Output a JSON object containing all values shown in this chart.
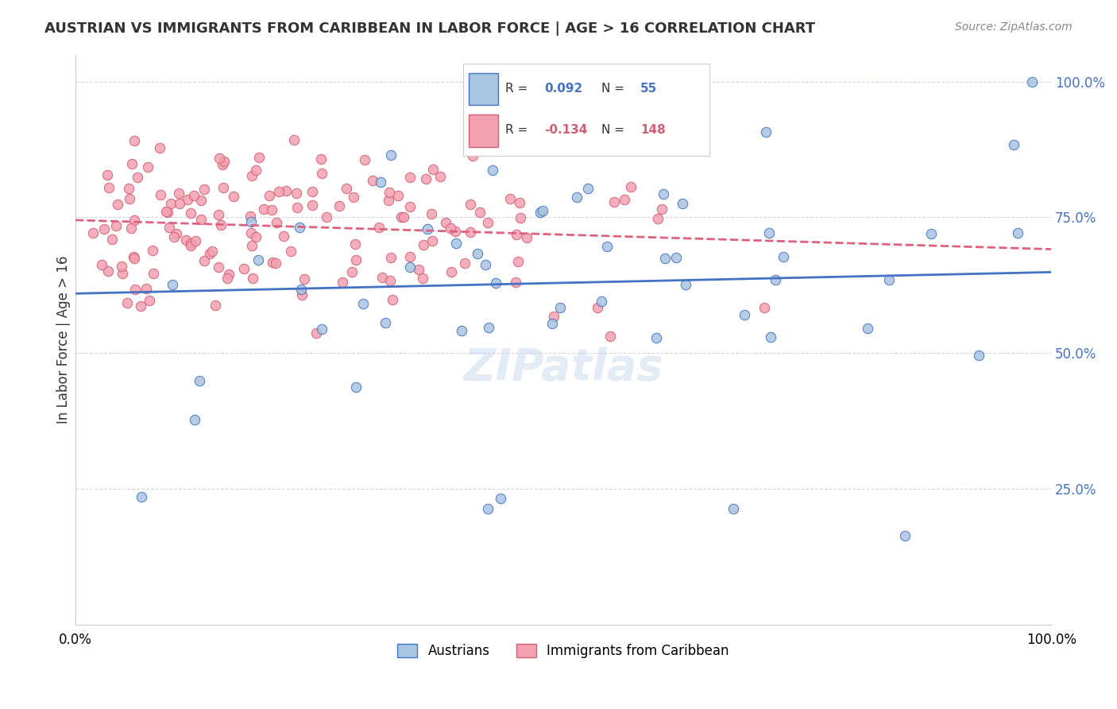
{
  "title": "AUSTRIAN VS IMMIGRANTS FROM CARIBBEAN IN LABOR FORCE | AGE > 16 CORRELATION CHART",
  "source": "Source: ZipAtlas.com",
  "ylabel": "In Labor Force | Age > 16",
  "r_austrians": 0.092,
  "n_austrians": 55,
  "r_immigrants": -0.134,
  "n_immigrants": 148,
  "color_austrians": "#a8c4e0",
  "color_immigrants": "#f4a0b0",
  "trend_color_austrians": "#4472c4",
  "trend_color_immigrants": "#e06080",
  "edge_color_immigrants": "#d06075",
  "background_color": "#ffffff",
  "grid_color": "#d0d8e8"
}
